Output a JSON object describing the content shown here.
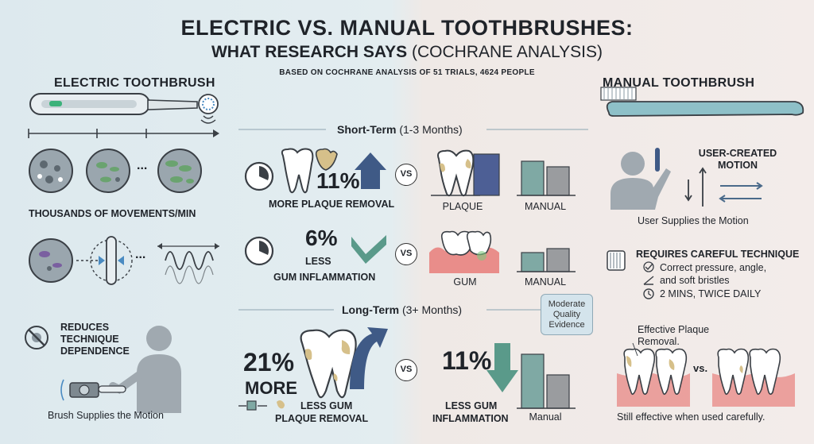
{
  "title": "ELECTRIC VS. MANUAL TOOTHBRUSHES:",
  "subtitle_bold": "WHAT RESEARCH SAYS",
  "subtitle_light": "(COCHRANE ANALYSIS)",
  "source_note": "BASED ON COCHRANE ANALYSIS OF 51 TRIALS, 4624 PEOPLE",
  "electric": {
    "heading": "ELECTRIC TOOTHBRUSH",
    "movements_label": "THOUSANDS OF MOVEMENTS/MIN",
    "reduces_label": "REDUCES TECHNIQUE DEPENDENCE",
    "motion_caption": "Brush Supplies the Motion",
    "ellipsis": "..."
  },
  "manual": {
    "heading": "MANUAL TOOTHBRUSH",
    "user_motion_label": "USER-CREATED MOTION",
    "user_caption": "User Supplies the Motion",
    "technique_label": "REQUIRES CAREFUL TECHNIQUE",
    "technique_items": [
      "Correct pressure, angle,",
      "and soft bristles",
      "2 MINS, TWICE DAILY"
    ],
    "effective_label": "Effective Plaque Removal.",
    "vs_small": "vs.",
    "still_caption": "Still effective when used carefully."
  },
  "short_term": {
    "heading_bold": "Short-Term",
    "heading_light": "(1-3 Months)",
    "plaque_pct": "11%",
    "plaque_label": "MORE PLAQUE REMOVAL",
    "gum_pct": "6%",
    "gum_label_1": "LESS",
    "gum_label_2": "GUM INFLAMMATION",
    "bar_label_plaque": "PLAQUE",
    "bar_label_gum": "GUM",
    "bar_label_manual": "MANUAL"
  },
  "long_term": {
    "heading_bold": "Long-Term",
    "heading_light": "(3+ Months)",
    "plaque_pct": "21%",
    "plaque_more": "MORE",
    "plaque_label_1": "LESS GUM",
    "plaque_label_2": "PLAQUE REMOVAL",
    "gum_pct": "11%",
    "gum_label_1": "LESS GUM",
    "gum_label_2": "INFLAMMATION",
    "bar_label_manual": "Manual"
  },
  "badge": [
    "Moderate",
    "Quality",
    "Evidence"
  ],
  "vs_label": "VS",
  "colors": {
    "electric_bar": "#4d5f95",
    "teal_bar": "#7fa9a4",
    "grey_bar": "#9a9c9f",
    "arrow_blue": "#3f5a86",
    "arrow_teal": "#5a9a8a",
    "plaque": "#d6c08a",
    "gum": "#e98d8a"
  }
}
